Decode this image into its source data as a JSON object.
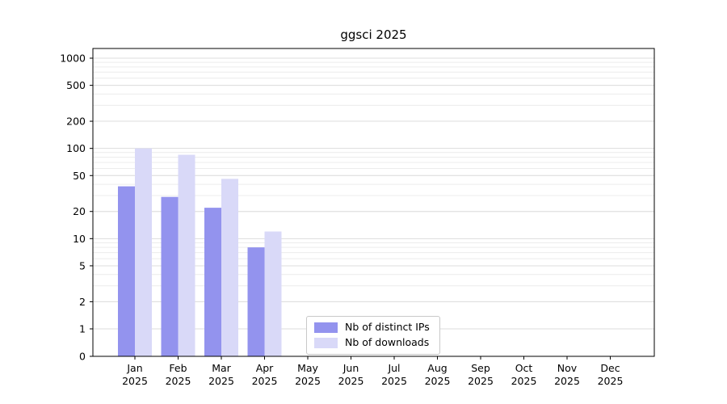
{
  "title": "ggsci 2025",
  "chart_data": {
    "type": "bar",
    "title": "ggsci 2025",
    "scale": "symlog",
    "grid": true,
    "legend_position": "bottom-center-inside",
    "year": "2025",
    "categories": [
      "Jan",
      "Feb",
      "Mar",
      "Apr",
      "May",
      "Jun",
      "Jul",
      "Aug",
      "Sep",
      "Oct",
      "Nov",
      "Dec"
    ],
    "y_ticks": [
      0,
      1,
      2,
      5,
      10,
      20,
      50,
      100,
      200,
      500,
      1000
    ],
    "ylim": [
      0,
      1300
    ],
    "series": [
      {
        "name": "Nb of distinct IPs",
        "color": "#9393ee",
        "values": [
          38,
          29,
          22,
          8,
          0,
          0,
          0,
          0,
          0,
          0,
          0,
          0
        ]
      },
      {
        "name": "Nb of downloads",
        "color": "#d9d9f8",
        "values": [
          100,
          85,
          46,
          12,
          0,
          0,
          0,
          0,
          0,
          0,
          0,
          0
        ]
      }
    ]
  }
}
